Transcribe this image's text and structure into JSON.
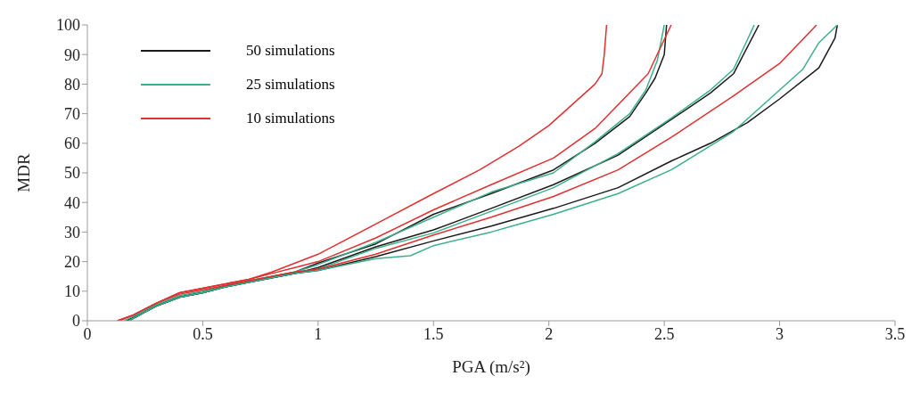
{
  "chart_data": {
    "type": "line",
    "xlabel": "PGA (m/s²)",
    "ylabel": "MDR",
    "xlim": [
      0,
      3.5
    ],
    "xticks": [
      0,
      0.5,
      1,
      1.5,
      2,
      2.5,
      3,
      3.5
    ],
    "ylim": [
      0,
      100
    ],
    "yticks": [
      0,
      10,
      20,
      30,
      40,
      50,
      60,
      70,
      80,
      90,
      100
    ],
    "grid": false,
    "legend": "top left",
    "marker": "none",
    "line_style": "solid",
    "series": [
      {
        "name": "50 simulations",
        "color": "#1a1a1a",
        "x": [
          0.17,
          0.25,
          0.3,
          0.4,
          0.5,
          0.6,
          0.7,
          0.8,
          0.9,
          1.0,
          1.25,
          1.5,
          1.75,
          2.02,
          2.2,
          2.35,
          2.42,
          2.46,
          2.5,
          2.51
        ],
        "values": [
          0,
          3,
          5,
          8,
          9.5,
          11.5,
          13.5,
          15,
          16.5,
          19.5,
          26,
          36,
          43,
          51,
          60,
          69,
          77,
          82,
          90,
          100
        ]
      },
      {
        "name": "25 simulations",
        "color": "#3cb08a",
        "x": [
          0.16,
          0.25,
          0.3,
          0.4,
          0.5,
          0.6,
          0.7,
          0.8,
          0.9,
          1.0,
          1.25,
          1.5,
          1.75,
          2.02,
          2.2,
          2.35,
          2.42,
          2.47,
          2.5
        ],
        "values": [
          0,
          3.5,
          5.5,
          8.5,
          10,
          12,
          13.5,
          15,
          16.5,
          19,
          26.5,
          35,
          43.5,
          50,
          60.5,
          70,
          78,
          88,
          100
        ]
      },
      {
        "name": "10 simulations",
        "color": "#e03030",
        "x": [
          0.13,
          0.2,
          0.3,
          0.4,
          0.5,
          0.6,
          0.7,
          0.8,
          0.9,
          1.0,
          1.25,
          1.5,
          1.7,
          1.87,
          2.0,
          2.1,
          2.2,
          2.23,
          2.24,
          2.25
        ],
        "values": [
          0,
          2,
          6,
          9.5,
          11,
          12.5,
          14,
          16.5,
          19.5,
          22.5,
          32.7,
          43,
          51,
          59,
          66,
          73,
          80,
          83.5,
          90,
          100
        ]
      },
      {
        "color": "#e03030",
        "x": [
          0.13,
          0.2,
          0.3,
          0.4,
          0.5,
          0.6,
          0.7,
          0.8,
          0.9,
          1.0,
          1.25,
          1.5,
          1.75,
          2.02,
          2.2,
          2.43,
          2.53
        ],
        "values": [
          0,
          2,
          6,
          9.5,
          11,
          12.5,
          14,
          16,
          18,
          20,
          28,
          37.5,
          46,
          55,
          65,
          83.5,
          100
        ]
      },
      {
        "color": "#1a1a1a",
        "x": [
          0.18,
          0.25,
          0.3,
          0.4,
          0.5,
          0.6,
          0.7,
          0.8,
          0.9,
          1.0,
          1.25,
          1.5,
          1.75,
          2.02,
          2.3,
          2.53,
          2.7,
          2.8,
          2.91
        ],
        "values": [
          0,
          3,
          5,
          8,
          9.5,
          11.5,
          13,
          14.5,
          16,
          18,
          25,
          30.7,
          38,
          46,
          56,
          68,
          77,
          83.5,
          100
        ]
      },
      {
        "color": "#3cb08a",
        "x": [
          0.18,
          0.25,
          0.3,
          0.4,
          0.5,
          0.6,
          0.7,
          0.8,
          0.9,
          1.0,
          1.25,
          1.5,
          1.75,
          2.02,
          2.3,
          2.53,
          2.7,
          2.8,
          2.89
        ],
        "values": [
          0,
          3,
          5,
          8,
          9.5,
          11.5,
          13,
          14.5,
          16,
          17.5,
          24.5,
          29.7,
          37,
          45,
          56.5,
          68.5,
          78,
          85,
          100
        ]
      },
      {
        "color": "#e03030",
        "x": [
          0.14,
          0.2,
          0.3,
          0.4,
          0.5,
          0.6,
          0.7,
          0.8,
          0.9,
          1.0,
          1.25,
          1.5,
          1.75,
          2.02,
          2.3,
          2.53,
          2.8,
          3.0,
          3.16
        ],
        "values": [
          0,
          2,
          6,
          9,
          10.5,
          12,
          13.5,
          15,
          16.5,
          17.5,
          22.5,
          29,
          35,
          42,
          51,
          62,
          76,
          87,
          100
        ]
      },
      {
        "color": "#1a1a1a",
        "x": [
          0.18,
          0.25,
          0.3,
          0.4,
          0.5,
          0.6,
          0.7,
          0.8,
          0.9,
          1.0,
          1.25,
          1.5,
          1.75,
          2.02,
          2.3,
          2.53,
          2.7,
          2.86,
          3.0,
          3.17,
          3.24,
          3.25
        ],
        "values": [
          0,
          3,
          5,
          8,
          9.5,
          11.5,
          13,
          14.5,
          16,
          17,
          21.7,
          27,
          32,
          38,
          45,
          54,
          60,
          67,
          75,
          85.5,
          95.6,
          100
        ]
      },
      {
        "color": "#3cb08a",
        "x": [
          0.18,
          0.25,
          0.3,
          0.4,
          0.5,
          0.6,
          0.7,
          0.8,
          0.9,
          1.0,
          1.25,
          1.4,
          1.5,
          1.75,
          2.02,
          2.3,
          2.53,
          2.8,
          3.0,
          3.1,
          3.17,
          3.25
        ],
        "values": [
          0,
          3,
          5,
          8,
          9.5,
          11.5,
          13,
          14.5,
          16,
          17,
          21,
          22,
          25.4,
          30,
          36,
          43,
          51,
          64,
          78,
          85,
          94,
          100
        ]
      }
    ]
  }
}
